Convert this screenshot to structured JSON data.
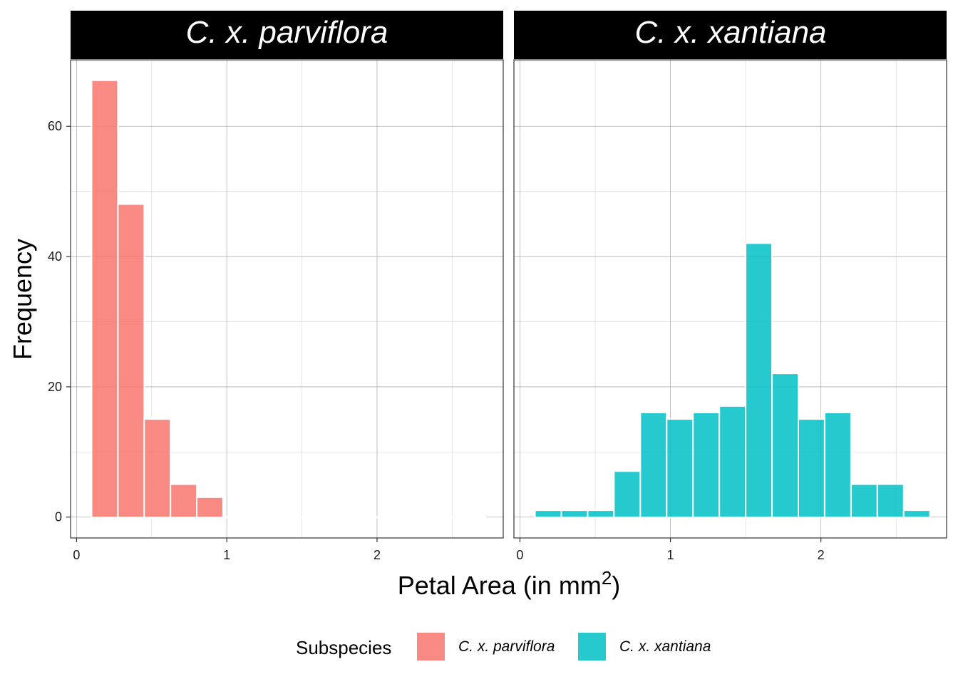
{
  "chart_data": {
    "type": "bar",
    "subtype": "faceted-histogram",
    "xlabel_main": "Petal Area (in mm",
    "xlabel_sup": "2",
    "xlabel_close": ")",
    "ylabel": "Frequency",
    "xlim": [
      -0.04,
      2.84
    ],
    "ylim": [
      -3.2,
      70.2
    ],
    "x_ticks": [
      0,
      1,
      2
    ],
    "x_tick_labels": [
      "0",
      "1",
      "2"
    ],
    "y_ticks": [
      0,
      20,
      40,
      60
    ],
    "y_tick_labels": [
      "0",
      "20",
      "40",
      "60"
    ],
    "y_minor_ticks": [
      10,
      30,
      50,
      70
    ],
    "x_minor_ticks": [
      0.5,
      1.5,
      2.5
    ],
    "bin_width": 0.175,
    "bins_start": 0.1,
    "legend": {
      "title": "Subspecies",
      "position": "bottom",
      "entries": [
        {
          "label": "C. x. parviflora",
          "color": "#F8766D"
        },
        {
          "label": "C. x. xantiana",
          "color": "#00BFC4"
        }
      ]
    },
    "facets": [
      {
        "name": "C. x. parviflora",
        "color": "#F8766D",
        "counts": [
          67,
          48,
          15,
          5,
          3,
          0,
          0,
          0,
          0,
          0,
          0,
          0,
          0,
          0,
          0
        ]
      },
      {
        "name": "C. x. xantiana",
        "color": "#00BFC4",
        "counts": [
          1,
          1,
          1,
          7,
          16,
          15,
          16,
          17,
          42,
          22,
          15,
          16,
          5,
          5,
          1
        ]
      }
    ]
  }
}
